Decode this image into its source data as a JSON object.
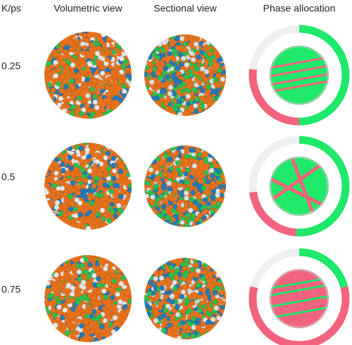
{
  "header": {
    "label": "K/ps",
    "columns": [
      "Volumetric view",
      "Sectional view",
      "Phase allocation"
    ]
  },
  "phase_colors": [
    "#1fe86a",
    "#f2647e",
    "#efefef"
  ],
  "rows": [
    {
      "label": "0.25",
      "phase_allocation": {
        "type": "pie",
        "values": [
          50,
          27,
          23
        ]
      }
    },
    {
      "label": "0.5",
      "phase_allocation": {
        "type": "pie",
        "values": [
          51,
          22,
          27
        ]
      }
    },
    {
      "label": "0.75",
      "phase_allocation": {
        "type": "pie",
        "values": [
          21,
          58,
          21
        ]
      }
    }
  ]
}
